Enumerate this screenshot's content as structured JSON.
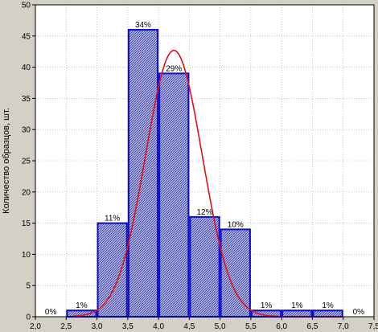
{
  "chart_data": {
    "type": "bar",
    "title": "",
    "xlabel": "",
    "ylabel": "Количество образцов, шт.",
    "xlim": [
      2.0,
      7.5
    ],
    "ylim": [
      0,
      50
    ],
    "x_ticks": [
      "2,0",
      "2,5",
      "3,0",
      "3,5",
      "4,0",
      "4,5",
      "5,0",
      "5,5",
      "6,0",
      "6,5",
      "7,0",
      "7,5"
    ],
    "x_tick_values": [
      2.0,
      2.5,
      3.0,
      3.5,
      4.0,
      4.5,
      5.0,
      5.5,
      6.0,
      6.5,
      7.0,
      7.5
    ],
    "y_ticks": [
      "0",
      "5",
      "10",
      "15",
      "20",
      "25",
      "30",
      "35",
      "40",
      "45",
      "50"
    ],
    "y_tick_values": [
      0,
      5,
      10,
      15,
      20,
      25,
      30,
      35,
      40,
      45,
      50
    ],
    "bins": [
      {
        "from": 2.0,
        "to": 2.5,
        "value": 0,
        "label": "0%"
      },
      {
        "from": 2.5,
        "to": 3.0,
        "value": 1,
        "label": "1%"
      },
      {
        "from": 3.0,
        "to": 3.5,
        "value": 15,
        "label": "11%"
      },
      {
        "from": 3.5,
        "to": 4.0,
        "value": 46,
        "label": "34%"
      },
      {
        "from": 4.0,
        "to": 4.5,
        "value": 39,
        "label": "29%"
      },
      {
        "from": 4.5,
        "to": 5.0,
        "value": 16,
        "label": "12%"
      },
      {
        "from": 5.0,
        "to": 5.5,
        "value": 14,
        "label": "10%"
      },
      {
        "from": 5.5,
        "to": 6.0,
        "value": 1,
        "label": "1%"
      },
      {
        "from": 6.0,
        "to": 6.5,
        "value": 1,
        "label": "1%"
      },
      {
        "from": 6.5,
        "to": 7.0,
        "value": 1,
        "label": "1%"
      },
      {
        "from": 7.0,
        "to": 7.5,
        "value": 0,
        "label": "0%"
      }
    ],
    "normal_curve": {
      "mean": 4.25,
      "sd": 0.46,
      "peak": 42.7
    },
    "grid": true,
    "colors": {
      "background": "#d4d0c8",
      "plot_background": "#ffffff",
      "bar_fill": "#c8cce8",
      "bar_hatch": "#2a2f9a",
      "bar_stroke": "#0a0ad2",
      "curve": "#e0101c",
      "grid": "#a0a0a0"
    }
  }
}
